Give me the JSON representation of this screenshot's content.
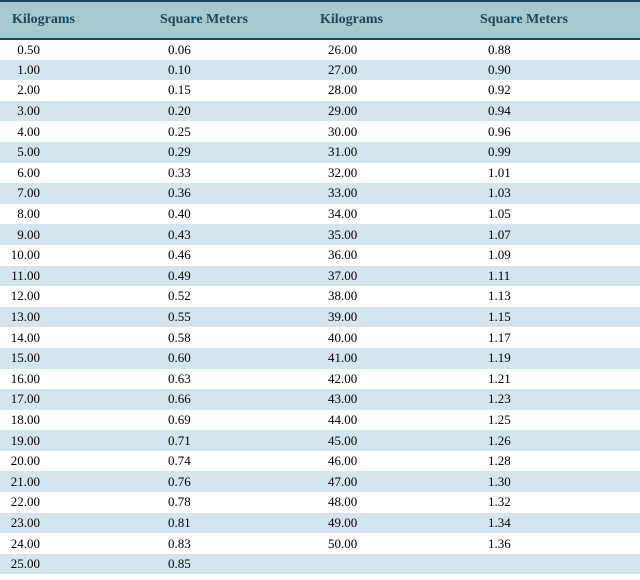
{
  "table": {
    "type": "table",
    "background_color": "#ffffff",
    "header": {
      "background_color": "#a8c8d0",
      "border_color": "#1a4a5a",
      "font_color": "#1a4a5a",
      "font_size": 14,
      "font_weight": "bold",
      "columns": [
        "Kilograms",
        "Square Meters",
        "Kilograms",
        "Square Meters"
      ]
    },
    "row_colors": {
      "even": "#d5e5ed",
      "odd": "#ffffff"
    },
    "cell_font_size": 13,
    "cell_font_color": "#000000",
    "rows": [
      {
        "kg1": "0.50",
        "sqm1": "0.06",
        "kg2": "26.00",
        "sqm2": "0.88"
      },
      {
        "kg1": "1.00",
        "sqm1": "0.10",
        "kg2": "27.00",
        "sqm2": "0.90"
      },
      {
        "kg1": "2.00",
        "sqm1": "0.15",
        "kg2": "28.00",
        "sqm2": "0.92"
      },
      {
        "kg1": "3.00",
        "sqm1": "0.20",
        "kg2": "29.00",
        "sqm2": "0.94"
      },
      {
        "kg1": "4.00",
        "sqm1": "0.25",
        "kg2": "30.00",
        "sqm2": "0.96"
      },
      {
        "kg1": "5.00",
        "sqm1": "0.29",
        "kg2": "31.00",
        "sqm2": "0.99"
      },
      {
        "kg1": "6.00",
        "sqm1": "0.33",
        "kg2": "32.00",
        "sqm2": "1.01"
      },
      {
        "kg1": "7.00",
        "sqm1": "0.36",
        "kg2": "33.00",
        "sqm2": "1.03"
      },
      {
        "kg1": "8.00",
        "sqm1": "0.40",
        "kg2": "34.00",
        "sqm2": "1.05"
      },
      {
        "kg1": "9.00",
        "sqm1": "0.43",
        "kg2": "35.00",
        "sqm2": "1.07"
      },
      {
        "kg1": "10.00",
        "sqm1": "0.46",
        "kg2": "36.00",
        "sqm2": "1.09"
      },
      {
        "kg1": "11.00",
        "sqm1": "0.49",
        "kg2": "37.00",
        "sqm2": "1.11"
      },
      {
        "kg1": "12.00",
        "sqm1": "0.52",
        "kg2": "38.00",
        "sqm2": "1.13"
      },
      {
        "kg1": "13.00",
        "sqm1": "0.55",
        "kg2": "39.00",
        "sqm2": "1.15"
      },
      {
        "kg1": "14.00",
        "sqm1": "0.58",
        "kg2": "40.00",
        "sqm2": "1.17"
      },
      {
        "kg1": "15.00",
        "sqm1": "0.60",
        "kg2": "41.00",
        "sqm2": "1.19"
      },
      {
        "kg1": "16.00",
        "sqm1": "0.63",
        "kg2": "42.00",
        "sqm2": "1.21"
      },
      {
        "kg1": "17.00",
        "sqm1": "0.66",
        "kg2": "43.00",
        "sqm2": "1.23"
      },
      {
        "kg1": "18.00",
        "sqm1": "0.69",
        "kg2": "44.00",
        "sqm2": "1.25"
      },
      {
        "kg1": "19.00",
        "sqm1": "0.71",
        "kg2": "45.00",
        "sqm2": "1.26"
      },
      {
        "kg1": "20.00",
        "sqm1": "0.74",
        "kg2": "46.00",
        "sqm2": "1.28"
      },
      {
        "kg1": "21.00",
        "sqm1": "0.76",
        "kg2": "47.00",
        "sqm2": "1.30"
      },
      {
        "kg1": "22.00",
        "sqm1": "0.78",
        "kg2": "48.00",
        "sqm2": "1.32"
      },
      {
        "kg1": "23.00",
        "sqm1": "0.81",
        "kg2": "49.00",
        "sqm2": "1.34"
      },
      {
        "kg1": "24.00",
        "sqm1": "0.83",
        "kg2": "50.00",
        "sqm2": "1.36"
      },
      {
        "kg1": "25.00",
        "sqm1": "0.85",
        "kg2": "",
        "sqm2": ""
      }
    ]
  }
}
